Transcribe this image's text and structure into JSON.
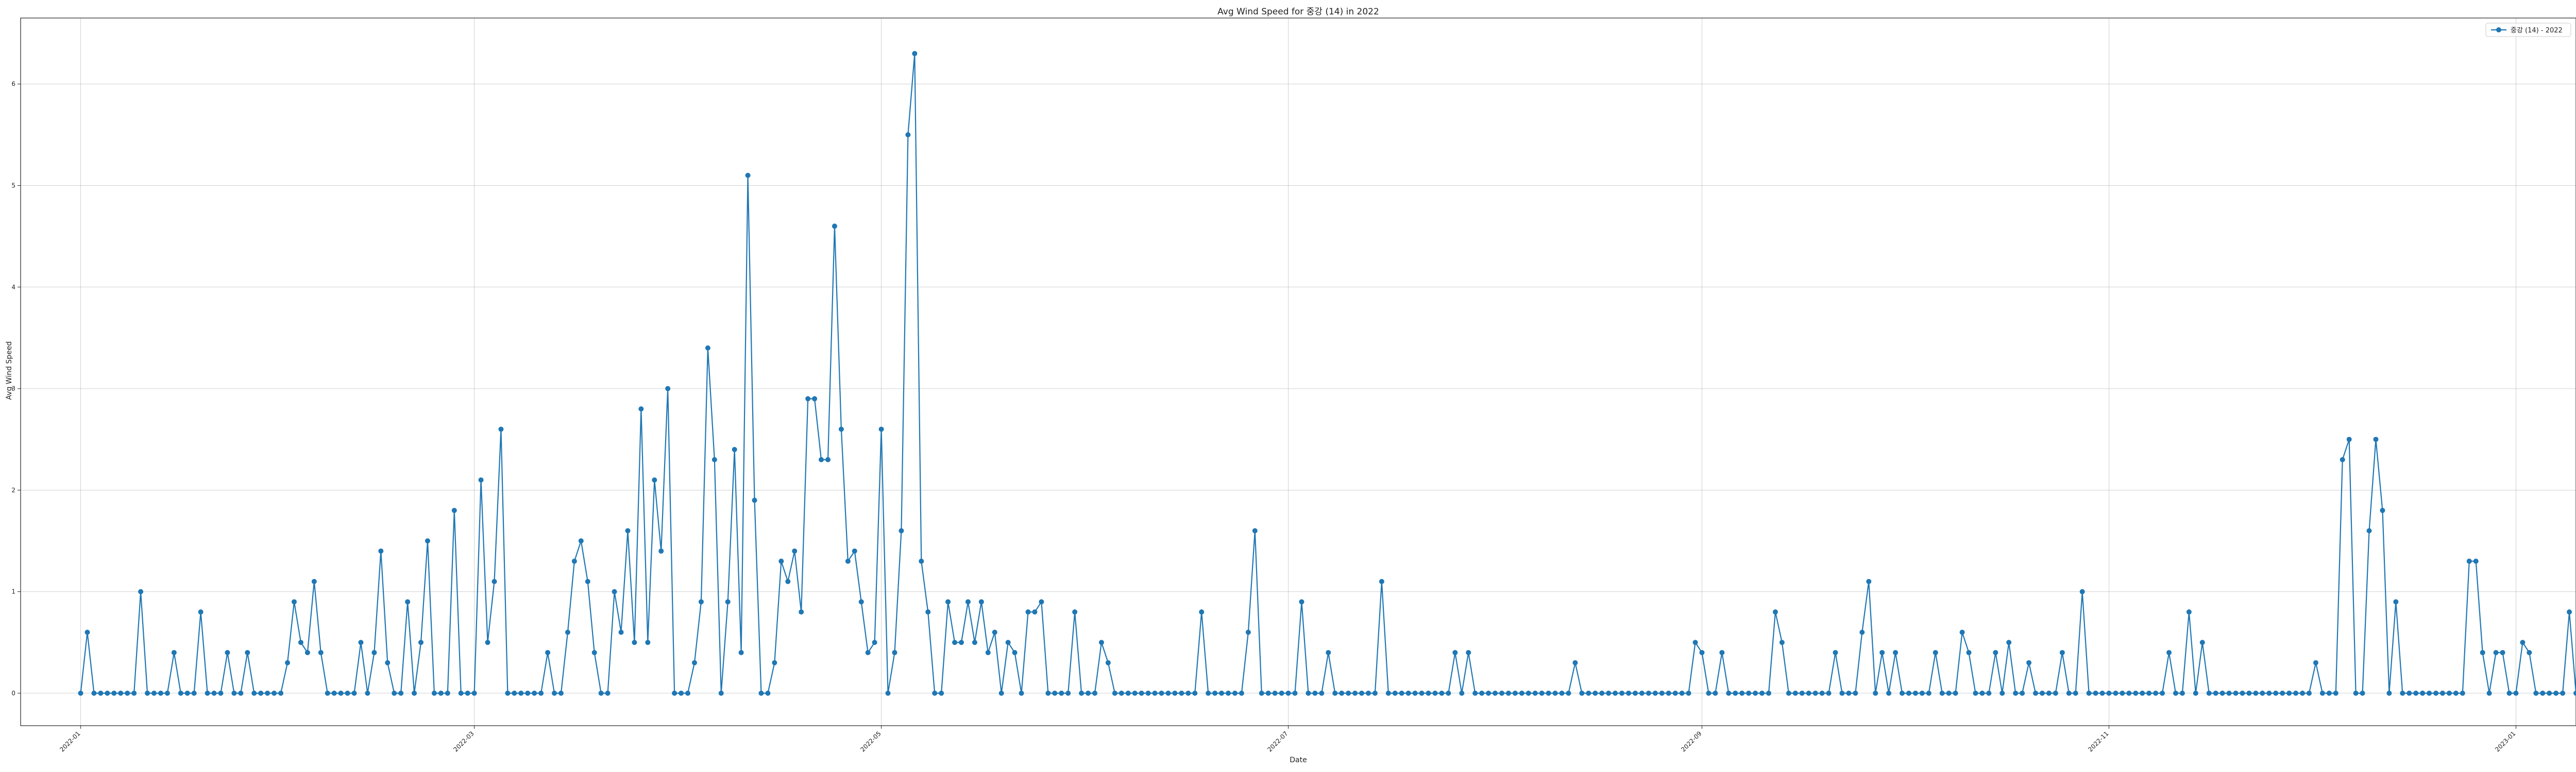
{
  "chart_data": {
    "type": "line",
    "title": "Avg Wind Speed for 중강 (14) in 2022",
    "xlabel": "Date",
    "ylabel": "Avg Wind Speed",
    "xlim": [
      "2021-12-23",
      "2023-01-10"
    ],
    "ylim": [
      -0.32,
      6.65
    ],
    "xticks": [
      "2022-01",
      "2022-03",
      "2022-05",
      "2022-07",
      "2022-09",
      "2022-11",
      "2023-01"
    ],
    "yticks": [
      0,
      1,
      2,
      3,
      4,
      5,
      6
    ],
    "grid": true,
    "legend_position": "top-right",
    "series": [
      {
        "name": "중강 (14) - 2022",
        "color": "#1f77b4",
        "marker": "circle",
        "x_start": "2022-01-01",
        "x_step_days": 1,
        "values": [
          0.0,
          0.6,
          0.0,
          0.0,
          0.0,
          0.0,
          0.0,
          0.0,
          0.0,
          1.0,
          0.0,
          0.0,
          0.0,
          0.0,
          0.4,
          0.0,
          0.0,
          0.0,
          0.8,
          0.0,
          0.0,
          0.0,
          0.4,
          0.0,
          0.0,
          0.4,
          0.0,
          0.0,
          0.0,
          0.0,
          0.0,
          0.3,
          0.9,
          0.5,
          0.4,
          1.1,
          0.4,
          0.0,
          0.0,
          0.0,
          0.0,
          0.0,
          0.5,
          0.0,
          0.4,
          1.4,
          0.3,
          0.0,
          0.0,
          0.9,
          0.0,
          0.5,
          1.5,
          0.0,
          0.0,
          0.0,
          1.8,
          0.0,
          0.0,
          0.0,
          2.1,
          0.5,
          1.1,
          2.6,
          0.0,
          0.0,
          0.0,
          0.0,
          0.0,
          0.0,
          0.4,
          0.0,
          0.0,
          0.6,
          1.3,
          1.5,
          1.1,
          0.4,
          0.0,
          0.0,
          1.0,
          0.6,
          1.6,
          0.5,
          2.8,
          0.5,
          2.1,
          1.4,
          3.0,
          0.0,
          0.0,
          0.0,
          0.3,
          0.9,
          3.4,
          2.3,
          0.0,
          0.9,
          2.4,
          0.4,
          5.1,
          1.9,
          0.0,
          0.0,
          0.3,
          1.3,
          1.1,
          1.4,
          0.8,
          2.9,
          2.9,
          2.3,
          2.3,
          4.6,
          2.6,
          1.3,
          1.4,
          0.9,
          0.4,
          0.5,
          2.6,
          0.0,
          0.4,
          1.6,
          5.5,
          6.3,
          1.3,
          0.8,
          0.0,
          0.0,
          0.9,
          0.5,
          0.5,
          0.9,
          0.5,
          0.9,
          0.4,
          0.6,
          0.0,
          0.5,
          0.4,
          0.0,
          0.8,
          0.8,
          0.9,
          0.0,
          0.0,
          0.0,
          0.0,
          0.8,
          0.0,
          0.0,
          0.0,
          0.5,
          0.3,
          0.0,
          0.0,
          0.0,
          0.0,
          0.0,
          0.0,
          0.0,
          0.0,
          0.0,
          0.0,
          0.0,
          0.0,
          0.0,
          0.8,
          0.0,
          0.0,
          0.0,
          0.0,
          0.0,
          0.0,
          0.6,
          1.6,
          0.0,
          0.0,
          0.0,
          0.0,
          0.0,
          0.0,
          0.9,
          0.0,
          0.0,
          0.0,
          0.4,
          0.0,
          0.0,
          0.0,
          0.0,
          0.0,
          0.0,
          0.0,
          1.1,
          0.0,
          0.0,
          0.0,
          0.0,
          0.0,
          0.0,
          0.0,
          0.0,
          0.0,
          0.0,
          0.4,
          0.0,
          0.4,
          0.0,
          0.0,
          0.0,
          0.0,
          0.0,
          0.0,
          0.0,
          0.0,
          0.0,
          0.0,
          0.0,
          0.0,
          0.0,
          0.0,
          0.0,
          0.3,
          0.0,
          0.0,
          0.0,
          0.0,
          0.0,
          0.0,
          0.0,
          0.0,
          0.0,
          0.0,
          0.0,
          0.0,
          0.0,
          0.0,
          0.0,
          0.0,
          0.0,
          0.5,
          0.4,
          0.0,
          0.0,
          0.4,
          0.0,
          0.0,
          0.0,
          0.0,
          0.0,
          0.0,
          0.0,
          0.8,
          0.5,
          0.0,
          0.0,
          0.0,
          0.0,
          0.0,
          0.0,
          0.0,
          0.4,
          0.0,
          0.0,
          0.0,
          0.6,
          1.1,
          0.0,
          0.4,
          0.0,
          0.4,
          0.0,
          0.0,
          0.0,
          0.0,
          0.0,
          0.4,
          0.0,
          0.0,
          0.0,
          0.6,
          0.4,
          0.0,
          0.0,
          0.0,
          0.4,
          0.0,
          0.5,
          0.0,
          0.0,
          0.3,
          0.0,
          0.0,
          0.0,
          0.0,
          0.4,
          0.0,
          0.0,
          1.0,
          0.0,
          0.0,
          0.0,
          0.0,
          0.0,
          0.0,
          0.0,
          0.0,
          0.0,
          0.0,
          0.0,
          0.0,
          0.4,
          0.0,
          0.0,
          0.8,
          0.0,
          0.5,
          0.0,
          0.0,
          0.0,
          0.0,
          0.0,
          0.0,
          0.0,
          0.0,
          0.0,
          0.0,
          0.0,
          0.0,
          0.0,
          0.0,
          0.0,
          0.0,
          0.3,
          0.0,
          0.0,
          0.0,
          2.3,
          2.5,
          0.0,
          0.0,
          1.6,
          2.5,
          1.8,
          0.0,
          0.9,
          0.0,
          0.0,
          0.0,
          0.0,
          0.0,
          0.0,
          0.0,
          0.0,
          0.0,
          0.0,
          1.3,
          1.3,
          0.4,
          0.0,
          0.4,
          0.4,
          0.0,
          0.0,
          0.5,
          0.4,
          0.0,
          0.0,
          0.0,
          0.0,
          0.0,
          0.8,
          0.0,
          0.0,
          0.0
        ]
      }
    ]
  }
}
